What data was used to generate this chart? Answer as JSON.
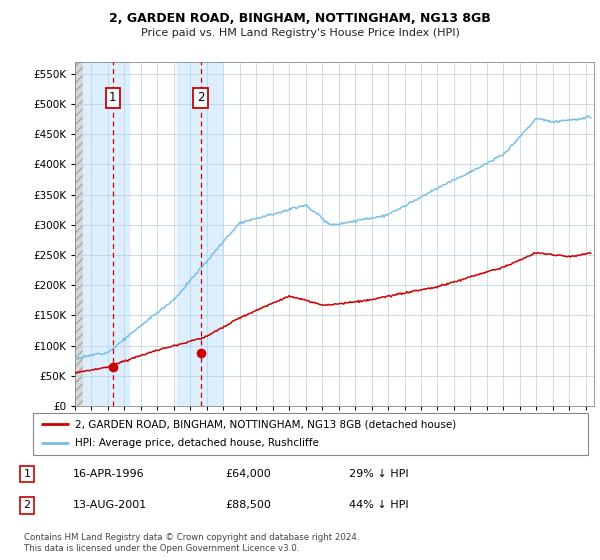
{
  "title1": "2, GARDEN ROAD, BINGHAM, NOTTINGHAM, NG13 8GB",
  "title2": "Price paid vs. HM Land Registry's House Price Index (HPI)",
  "ytick_vals": [
    0,
    50000,
    100000,
    150000,
    200000,
    250000,
    300000,
    350000,
    400000,
    450000,
    500000,
    550000
  ],
  "ylim": [
    0,
    570000
  ],
  "xlim_start": 1994.0,
  "xlim_end": 2025.5,
  "purchase1_date": 1996.29,
  "purchase1_price": 64000,
  "purchase2_date": 2001.62,
  "purchase2_price": 88500,
  "legend_line1": "2, GARDEN ROAD, BINGHAM, NOTTINGHAM, NG13 8GB (detached house)",
  "legend_line2": "HPI: Average price, detached house, Rushcliffe",
  "table_row1": [
    "1",
    "16-APR-1996",
    "£64,000",
    "29% ↓ HPI"
  ],
  "table_row2": [
    "2",
    "13-AUG-2001",
    "£88,500",
    "44% ↓ HPI"
  ],
  "footer": "Contains HM Land Registry data © Crown copyright and database right 2024.\nThis data is licensed under the Open Government Licence v3.0.",
  "hpi_color": "#7bbfe8",
  "price_color": "#cc0000",
  "highlight_bg": "#ddeeff",
  "grid_color": "#b8cfe0",
  "vline_color": "#cc0000",
  "hatch_color": "#cccccc"
}
